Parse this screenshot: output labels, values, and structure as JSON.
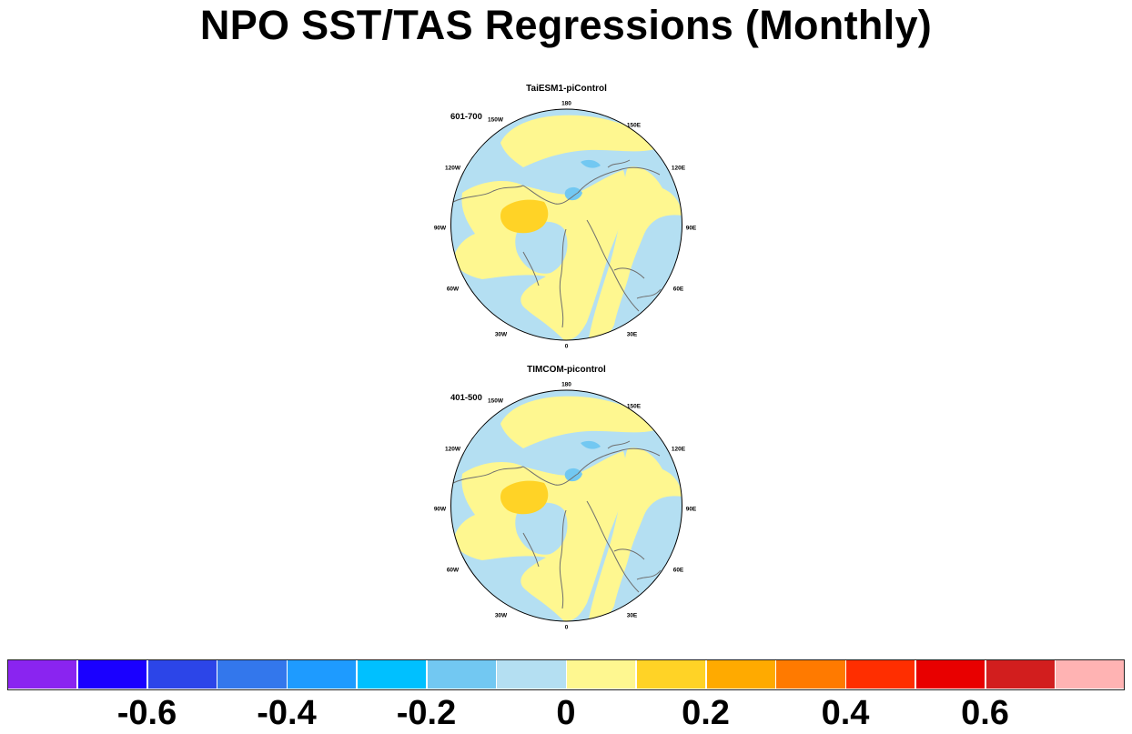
{
  "title": "NPO SST/TAS Regressions (Monthly)",
  "panels": [
    {
      "title": "TaiESM1-piControl",
      "period": "601-700"
    },
    {
      "title": "TIMCOM-picontrol",
      "period": "401-500"
    }
  ],
  "longitude_labels": [
    "180",
    "150E",
    "120E",
    "90E",
    "60E",
    "30E",
    "0",
    "30W",
    "60W",
    "90W",
    "120W",
    "150W"
  ],
  "colorbar": {
    "colors": [
      "#8a24f0",
      "#1a00ff",
      "#2c45e8",
      "#3377ec",
      "#1e9bff",
      "#00c0ff",
      "#72c8f2",
      "#b4dff2",
      "#fef790",
      "#ffd326",
      "#ffaa00",
      "#ff7a00",
      "#ff2e00",
      "#e80000",
      "#d21e1e",
      "#ffb3b3"
    ],
    "tick_labels": [
      "-0.6",
      "-0.4",
      "-0.2",
      "0",
      "0.2",
      "0.4",
      "0.6"
    ]
  },
  "fill_colors": {
    "neg_weak": "#b4dff2",
    "neg_mod": "#72c8f2",
    "pos_weak": "#fef790",
    "pos_mod": "#ffd326"
  }
}
